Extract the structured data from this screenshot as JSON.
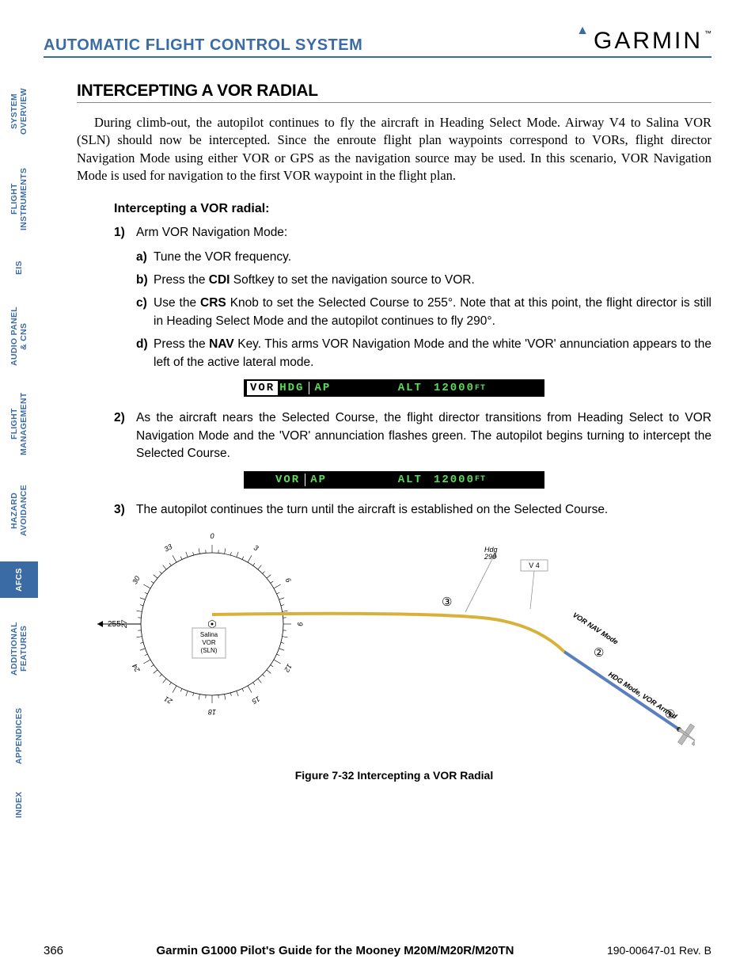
{
  "header": {
    "section_title": "AUTOMATIC FLIGHT CONTROL SYSTEM",
    "logo_text": "GARMIN",
    "logo_color": "#3b6ba5"
  },
  "sidebar": {
    "tabs": [
      {
        "label": "SYSTEM\nOVERVIEW",
        "active": false,
        "short": false
      },
      {
        "label": "FLIGHT\nINSTRUMENTS",
        "active": false,
        "short": false
      },
      {
        "label": "EIS",
        "active": false,
        "short": true
      },
      {
        "label": "AUDIO PANEL\n& CNS",
        "active": false,
        "short": false
      },
      {
        "label": "FLIGHT\nMANAGEMENT",
        "active": false,
        "short": false
      },
      {
        "label": "HAZARD\nAVOIDANCE",
        "active": false,
        "short": false
      },
      {
        "label": "AFCS",
        "active": true,
        "short": true
      },
      {
        "label": "ADDITIONAL\nFEATURES",
        "active": false,
        "short": false
      },
      {
        "label": "APPENDICES",
        "active": false,
        "short": false
      },
      {
        "label": "INDEX",
        "active": false,
        "short": true
      }
    ],
    "active_bg": "#3b6ba5",
    "text_color": "#3b6ba5"
  },
  "body": {
    "heading": "INTERCEPTING A VOR RADIAL",
    "intro": "During climb-out, the autopilot continues to fly the aircraft in Heading Select Mode.  Airway V4 to Salina VOR (SLN) should now be intercepted.  Since the enroute flight plan waypoints correspond to VORs, flight director Navigation Mode using either VOR or GPS as the navigation source may be used.  In this scenario, VOR Navigation Mode is used for navigation to the first VOR waypoint in the flight plan.",
    "subheading": "Intercepting a VOR radial:",
    "step1": {
      "num": "1)",
      "text": "Arm VOR Navigation Mode:"
    },
    "sub_a": {
      "lbl": "a)",
      "text": "Tune the VOR frequency."
    },
    "sub_b": {
      "lbl": "b)",
      "pre": "Press the ",
      "key": "CDI",
      "post": " Softkey to set the navigation source to VOR."
    },
    "sub_c": {
      "lbl": "c)",
      "pre": "Use the ",
      "key": "CRS",
      "post": " Knob to set the Selected Course to 255°.  Note that at this point, the flight director is still in Heading Select Mode and the autopilot continues to fly 290°."
    },
    "sub_d": {
      "lbl": "d)",
      "pre": "Press the ",
      "key": "NAV",
      "post": " Key.  This arms VOR Navigation Mode and the white 'VOR' annunciation appears to the left of the active lateral mode."
    },
    "status1": {
      "vor_armed": "VOR",
      "hdg": "HDG",
      "ap": "AP",
      "alt": "ALT",
      "value": "12000",
      "unit": "FT",
      "bg": "#000000",
      "text": "#ffffff",
      "green": "#5bdc5b"
    },
    "step2": {
      "num": "2)",
      "text": "As the aircraft nears the Selected Course, the flight director transitions from Heading Select to VOR Navigation Mode and the 'VOR' annunciation flashes green.  The autopilot begins turning to intercept the Selected Course."
    },
    "status2": {
      "vor": "VOR",
      "ap": "AP",
      "alt": "ALT",
      "value": "12000",
      "unit": "FT"
    },
    "step3": {
      "num": "3)",
      "text": "The autopilot continues the turn until the aircraft is established on the Selected Course."
    },
    "figure": {
      "caption": "Figure 7-32  Intercepting a VOR Radial",
      "vor_label_1": "Salina",
      "vor_label_2": "VOR",
      "vor_label_3": "(SLN)",
      "course_label": "255",
      "hdg_label": "Hdg\n290",
      "airway_label": "V 4",
      "mode_label_a": "VOR NAV Mode",
      "mode_label_b": "HDG Mode, VOR Armed",
      "marker1": "①",
      "marker2": "②",
      "marker3": "③",
      "yellow": "#d9b13a",
      "blue": "#5a7fbf",
      "grey": "#888888"
    }
  },
  "footer": {
    "page": "366",
    "mid": "Garmin G1000 Pilot's Guide for the Mooney M20M/M20R/M20TN",
    "right": "190-00647-01  Rev. B"
  }
}
